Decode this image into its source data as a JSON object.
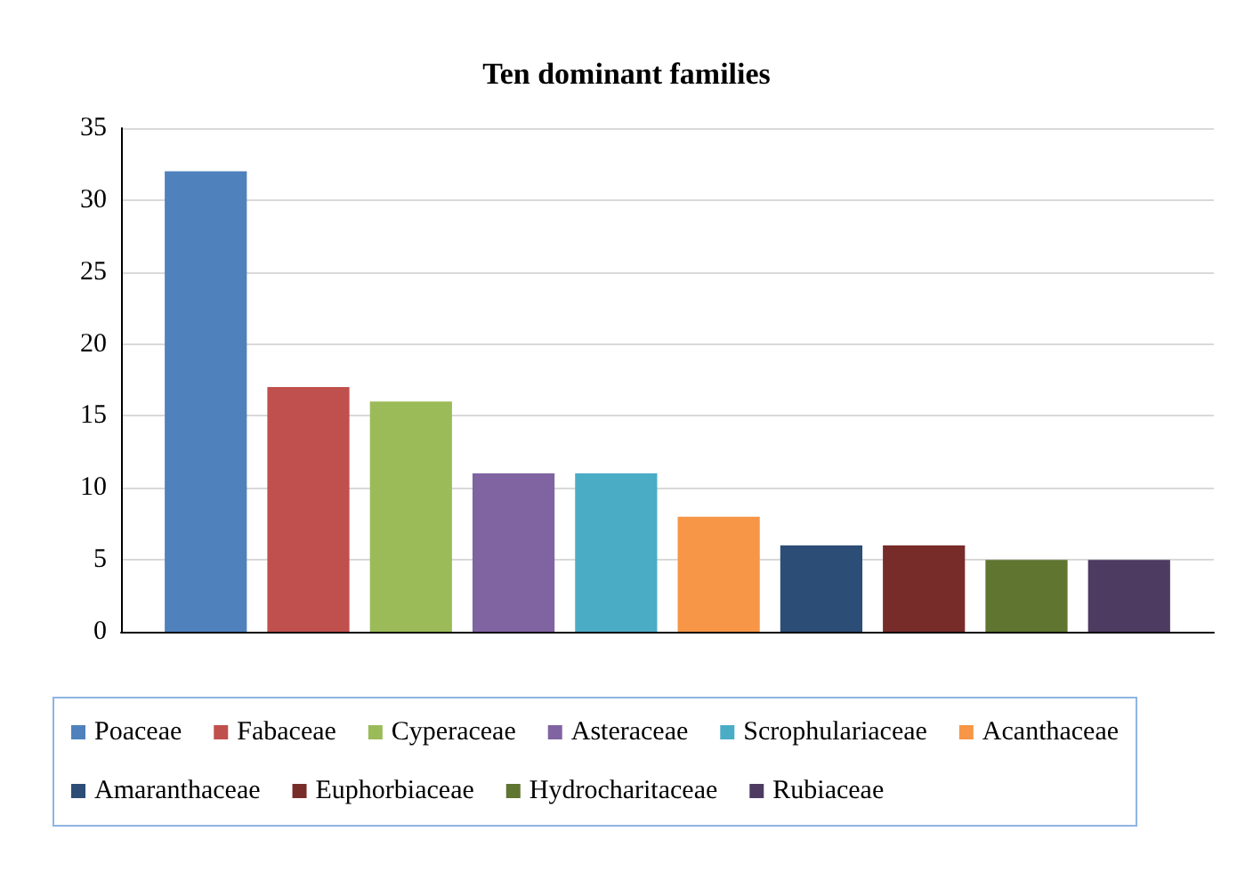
{
  "chart_data": {
    "type": "bar",
    "title": "Ten dominant families",
    "categories": [
      null
    ],
    "series": [
      {
        "name": "Poaceae",
        "color": "#4f81bd",
        "values": [
          32
        ]
      },
      {
        "name": "Fabaceae",
        "color": "#c0504d",
        "values": [
          17
        ]
      },
      {
        "name": "Cyperaceae",
        "color": "#9bbb59",
        "values": [
          16
        ]
      },
      {
        "name": "Asteraceae",
        "color": "#8064a2",
        "values": [
          11
        ]
      },
      {
        "name": "Scrophulariaceae",
        "color": "#4bacc6",
        "values": [
          11
        ]
      },
      {
        "name": "Acanthaceae",
        "color": "#f79646",
        "values": [
          8
        ]
      },
      {
        "name": "Amaranthaceae",
        "color": "#2c4d75",
        "values": [
          6
        ]
      },
      {
        "name": "Euphorbiaceae",
        "color": "#772c2a",
        "values": [
          6
        ]
      },
      {
        "name": "Hydrocharitaceae",
        "color": "#5f7530",
        "values": [
          5
        ]
      },
      {
        "name": "Rubiaceae",
        "color": "#4d3b62",
        "values": [
          5
        ]
      }
    ],
    "ylim": [
      0,
      35
    ],
    "yticks": [
      0,
      5,
      10,
      15,
      20,
      25,
      30,
      35
    ],
    "grid": "y",
    "legend": "bottom",
    "tick_labels": "y"
  }
}
